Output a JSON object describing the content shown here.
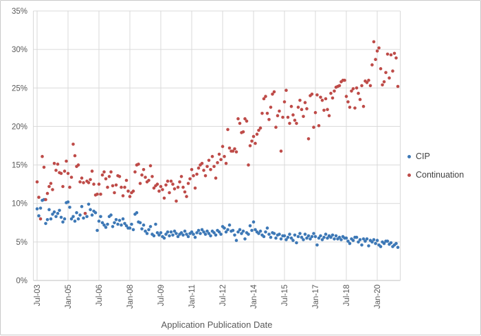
{
  "window": {
    "background": "#ffffff",
    "border_color": "#c9c9c9"
  },
  "chart_data": {
    "type": "scatter",
    "title": "",
    "xlabel": "Application Publication Date",
    "ylabel": "",
    "x_unit": "month",
    "x_start": "Jul-2003",
    "x_end": "Jan-2021",
    "ylim": [
      0,
      35
    ],
    "y_tick_step": 5,
    "y_tick_labels": [
      "0%",
      "5%",
      "10%",
      "15%",
      "20%",
      "25%",
      "30%",
      "35%"
    ],
    "x_tick_labels": [
      "Jul-03",
      "Jan-05",
      "Jul-06",
      "Jan-08",
      "Jul-09",
      "Jan-11",
      "Jul-12",
      "Jan-14",
      "Jul-15",
      "Jan-17",
      "Jul-18",
      "Jan-20"
    ],
    "x_tick_month_indices": [
      0,
      18,
      36,
      54,
      72,
      90,
      108,
      126,
      144,
      162,
      180,
      198
    ],
    "grid": true,
    "gridline_color": "#d9d9d9",
    "axis_line_color": "#bfbfbf",
    "tick_label_color": "#595959",
    "axis_title_color": "#595959",
    "legend_text_color": "#3f3f3f",
    "legend_position": "right",
    "marker_radius": 2.3,
    "series": [
      {
        "name": "CIP",
        "color": "#3d78b6",
        "values": [
          9.3,
          8.4,
          9.4,
          10.4,
          10.5,
          7.4,
          7.9,
          9.2,
          8.0,
          8.6,
          8.9,
          8.3,
          8.7,
          9.1,
          8.2,
          7.6,
          8.0,
          10.1,
          10.2,
          9.5,
          8.0,
          8.3,
          7.7,
          8.8,
          8.0,
          8.5,
          9.6,
          8.1,
          8.7,
          8.3,
          9.9,
          9.2,
          8.5,
          9.0,
          8.8,
          6.5,
          7.7,
          8.3,
          7.5,
          7.2,
          6.9,
          7.3,
          8.3,
          8.5,
          7.0,
          7.5,
          7.9,
          7.3,
          7.8,
          7.2,
          8.0,
          7.4,
          7.1,
          6.8,
          6.8,
          7.3,
          6.6,
          8.6,
          8.8,
          7.6,
          7.5,
          6.7,
          7.2,
          6.4,
          6.1,
          6.6,
          7.0,
          6.0,
          5.8,
          7.3,
          6.2,
          5.9,
          6.2,
          5.7,
          5.5,
          6.0,
          6.3,
          5.8,
          6.3,
          5.9,
          6.4,
          6.1,
          5.7,
          6.0,
          6.2,
          5.9,
          6.4,
          6.0,
          5.7,
          6.1,
          6.3,
          6.0,
          5.6,
          6.2,
          6.5,
          6.1,
          6.6,
          6.3,
          6.0,
          6.4,
          6.1,
          5.8,
          6.4,
          6.2,
          5.9,
          6.5,
          6.3,
          6.0,
          7.0,
          6.8,
          6.3,
          6.6,
          7.2,
          6.4,
          6.5,
          5.9,
          5.2,
          6.3,
          6.6,
          6.1,
          6.4,
          5.4,
          6.2,
          6.0,
          7.1,
          6.5,
          7.6,
          6.6,
          6.3,
          6.1,
          6.4,
          5.9,
          5.7,
          6.3,
          6.8,
          6.0,
          5.6,
          6.2,
          6.1,
          5.5,
          5.9,
          6.0,
          5.4,
          5.8,
          5.8,
          5.3,
          5.6,
          6.0,
          5.5,
          5.2,
          5.9,
          4.9,
          5.7,
          6.1,
          5.6,
          5.3,
          6.0,
          5.5,
          5.8,
          5.4,
          5.7,
          6.1,
          5.7,
          4.6,
          5.5,
          5.8,
          5.3,
          5.6,
          6.0,
          5.5,
          5.8,
          5.6,
          5.9,
          5.4,
          5.8,
          5.4,
          5.6,
          5.3,
          5.7,
          5.5,
          5.5,
          5.1,
          4.8,
          5.4,
          5.2,
          5.6,
          5.6,
          5.0,
          5.3,
          4.6,
          5.4,
          5.1,
          5.4,
          4.5,
          5.2,
          5.0,
          5.3,
          4.8,
          5.2,
          4.6,
          4.4,
          5.0,
          4.8,
          5.1,
          5.1,
          4.7,
          4.9,
          4.4,
          4.6,
          4.8,
          4.3
        ]
      },
      {
        "name": "Continuation",
        "color": "#be4b48",
        "values": [
          12.8,
          10.8,
          8.0,
          16.1,
          14.7,
          10.5,
          11.3,
          12.2,
          12.6,
          11.8,
          15.2,
          14.3,
          15.1,
          14.0,
          13.9,
          12.2,
          14.2,
          15.5,
          13.9,
          12.1,
          13.4,
          17.7,
          16.2,
          14.8,
          15.0,
          12.8,
          13.3,
          12.7,
          8.7,
          12.9,
          12.7,
          13.1,
          14.2,
          12.5,
          11.1,
          11.2,
          12.5,
          11.2,
          13.7,
          14.1,
          13.2,
          12.1,
          13.5,
          14.1,
          12.3,
          11.4,
          12.4,
          13.6,
          13.5,
          12.1,
          11.0,
          12.1,
          13.0,
          11.6,
          10.9,
          11.4,
          11.6,
          14.1,
          15.0,
          15.1,
          12.6,
          13.7,
          14.4,
          13.4,
          12.8,
          13.0,
          14.9,
          13.5,
          12.0,
          12.3,
          12.5,
          11.6,
          12.2,
          11.8,
          10.7,
          12.4,
          12.9,
          11.4,
          12.9,
          12.5,
          11.9,
          10.3,
          12.1,
          12.8,
          13.5,
          12.1,
          11.5,
          10.9,
          12.6,
          13.2,
          14.4,
          13.6,
          12.0,
          13.8,
          14.6,
          15.0,
          15.2,
          14.3,
          13.6,
          14.8,
          15.6,
          14.4,
          16.1,
          14.8,
          13.3,
          15.3,
          16.4,
          15.7,
          17.4,
          16.1,
          15.2,
          19.6,
          17.2,
          16.8,
          16.8,
          17.1,
          16.7,
          21.0,
          20.4,
          19.2,
          19.3,
          21.0,
          20.7,
          15.0,
          17.5,
          18.1,
          18.7,
          17.8,
          19.0,
          19.5,
          19.8,
          21.7,
          23.6,
          23.9,
          21.7,
          20.9,
          22.5,
          24.2,
          24.5,
          19.9,
          21.4,
          22.0,
          16.8,
          21.2,
          23.2,
          24.7,
          21.2,
          20.4,
          22.6,
          21.5,
          20.8,
          20.4,
          22.5,
          23.4,
          22.2,
          21.3,
          23.1,
          22.3,
          18.4,
          24.0,
          24.2,
          19.9,
          21.8,
          24.1,
          20.1,
          23.8,
          23.4,
          22.1,
          23.6,
          22.2,
          21.4,
          24.3,
          23.7,
          24.6,
          25.1,
          25.2,
          25.3,
          25.8,
          26.0,
          26.0,
          23.9,
          23.2,
          22.5,
          24.6,
          24.9,
          22.4,
          25.0,
          24.3,
          23.5,
          25.3,
          22.6,
          25.9,
          25.7,
          26.0,
          25.3,
          28.0,
          31.0,
          28.7,
          29.8,
          30.2,
          27.5,
          25.4,
          25.8,
          27.0,
          29.4,
          26.3,
          29.3,
          27.2,
          29.5,
          28.9,
          25.2
        ]
      }
    ],
    "legend": {
      "items": [
        {
          "label": "CIP",
          "color": "#3d78b6"
        },
        {
          "label": "Continuation",
          "color": "#be4b48"
        }
      ]
    }
  }
}
